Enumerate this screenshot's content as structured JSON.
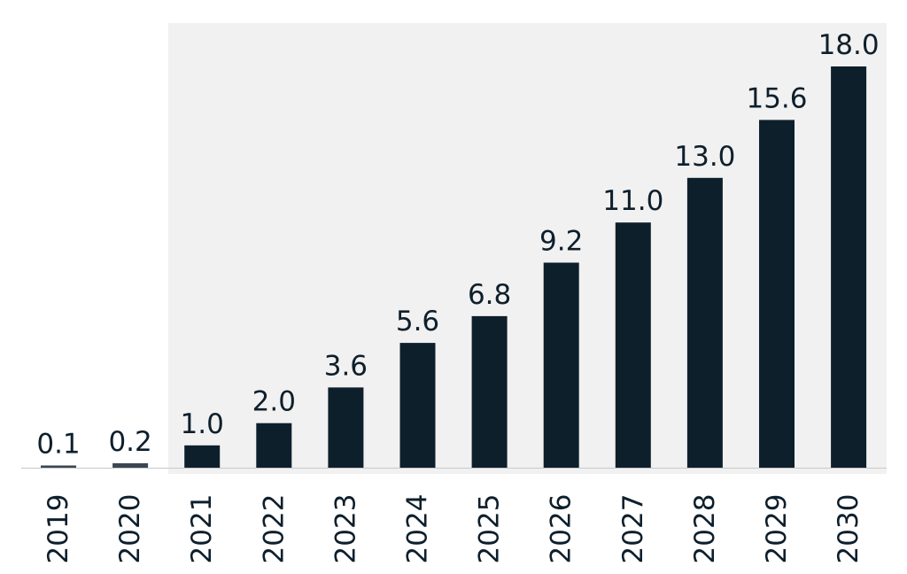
{
  "chart_data": {
    "type": "bar",
    "categories": [
      "2019",
      "2020",
      "2021",
      "2022",
      "2023",
      "2024",
      "2025",
      "2026",
      "2027",
      "2028",
      "2029",
      "2030"
    ],
    "values": [
      0.1,
      0.2,
      1.0,
      2.0,
      3.6,
      5.6,
      6.8,
      9.2,
      11.0,
      13.0,
      15.6,
      18.0
    ],
    "value_labels": [
      "0.1",
      "0.2",
      "1.0",
      "2.0",
      "3.6",
      "5.6",
      "6.8",
      "9.2",
      "11.0",
      "13.0",
      "15.6",
      "18.0"
    ],
    "title": "",
    "xlabel": "",
    "ylabel": "",
    "ylim": [
      0,
      18.0
    ],
    "highlight_range": [
      "2021",
      "2030"
    ],
    "grid": false,
    "legend": "none",
    "colors": {
      "bar": "#0e1f2c",
      "baseline_bar": "#3a4652",
      "highlight_background": "#f1f1f1",
      "axis": "#c8c8c8",
      "text": "#0e1f2c"
    }
  }
}
